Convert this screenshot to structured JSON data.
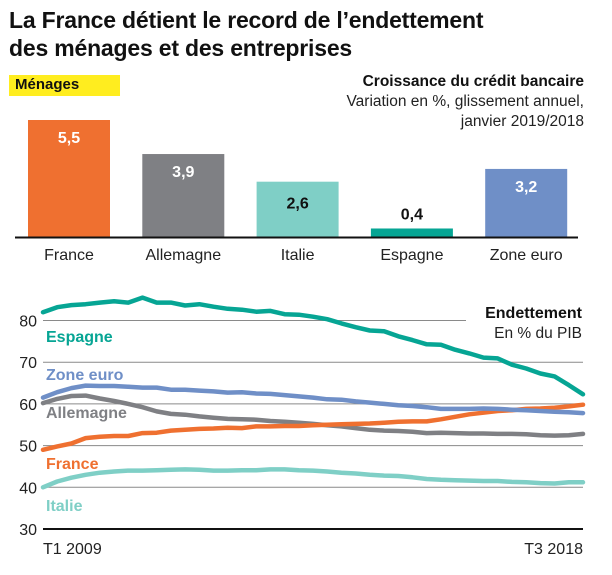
{
  "title": "La France détient le record de l’endettement des ménages et des entreprises",
  "title_lines": [
    "La France détient le record de l’endettement",
    "des ménages et des entreprises"
  ],
  "section_tag": "Ménages",
  "colors": {
    "france": "#ef7030",
    "allemagne": "#7f8084",
    "italie": "#7fcfc6",
    "espagne": "#06a594",
    "zone_euro": "#6f8fc7",
    "tag_yellow": "#ffed1f",
    "grid": "#888888",
    "axis": "#111111"
  },
  "chart_data": [
    {
      "type": "bar",
      "title": "Croissance du crédit bancaire",
      "subtitle_lines": [
        "Variation en %, glissement annuel,",
        "janvier 2019/2018"
      ],
      "categories": [
        "France",
        "Allemagne",
        "Italie",
        "Espagne",
        "Zone euro"
      ],
      "values": [
        5.5,
        3.9,
        2.6,
        0.4,
        3.2
      ],
      "value_labels": [
        "5,5",
        "3,9",
        "2,6",
        "0,4",
        "3,2"
      ],
      "label_colors": [
        "#ffffff",
        "#ffffff",
        "#111111",
        "#111111",
        "#ffffff"
      ],
      "bar_colors": [
        "#ef7030",
        "#7f8084",
        "#7fcfc6",
        "#06a594",
        "#6f8fc7"
      ],
      "xlabel": "",
      "ylabel": "",
      "ylim": [
        0,
        6
      ],
      "grid": false,
      "legend": "none"
    },
    {
      "type": "line",
      "title": "Endettement",
      "subtitle": "En % du PIB",
      "x_start_label": "T1 2009",
      "x_end_label": "T3 2018",
      "x_count": 39,
      "yticks": [
        30,
        40,
        50,
        60,
        70,
        80
      ],
      "ytick_labels": [
        "30",
        "40",
        "50",
        "60",
        "70",
        "80"
      ],
      "ylim": [
        30,
        90
      ],
      "grid": true,
      "legend": "inline-left",
      "series": [
        {
          "name": "Espagne",
          "color": "#06a594",
          "values": [
            82.0,
            83.2,
            83.7,
            83.9,
            84.3,
            84.6,
            84.3,
            85.5,
            84.3,
            84.3,
            83.6,
            83.9,
            83.3,
            82.8,
            82.6,
            82.1,
            82.3,
            81.5,
            81.4,
            80.9,
            80.3,
            79.3,
            78.4,
            77.6,
            77.4,
            76.2,
            75.3,
            74.3,
            74.2,
            73.0,
            72.1,
            71.1,
            70.9,
            69.4,
            68.5,
            67.3,
            66.6,
            64.5,
            62.3
          ]
        },
        {
          "name": "Zone euro",
          "color": "#6f8fc7",
          "values": [
            61.5,
            62.8,
            63.8,
            64.4,
            64.3,
            64.3,
            64.1,
            63.9,
            63.9,
            63.4,
            63.4,
            63.2,
            63.0,
            62.7,
            62.8,
            62.5,
            62.4,
            62.1,
            61.8,
            61.5,
            61.1,
            61.0,
            60.6,
            60.3,
            60.0,
            59.7,
            59.5,
            59.2,
            58.8,
            58.8,
            58.8,
            58.9,
            58.8,
            58.6,
            58.5,
            58.3,
            58.1,
            58.0,
            57.8
          ]
        },
        {
          "name": "Allemagne",
          "color": "#7f8084",
          "values": [
            60.2,
            61.2,
            61.9,
            62.0,
            61.3,
            60.7,
            60.0,
            59.2,
            58.2,
            57.6,
            57.4,
            57.0,
            56.7,
            56.4,
            56.3,
            56.2,
            55.9,
            55.7,
            55.5,
            55.2,
            54.9,
            54.6,
            54.2,
            53.8,
            53.6,
            53.5,
            53.3,
            53.0,
            53.1,
            53.0,
            52.9,
            52.9,
            52.8,
            52.8,
            52.7,
            52.5,
            52.4,
            52.5,
            52.8
          ]
        },
        {
          "name": "France",
          "color": "#ef7030",
          "values": [
            49.0,
            49.8,
            50.5,
            51.8,
            52.1,
            52.3,
            52.3,
            53.0,
            53.1,
            53.6,
            53.8,
            54.0,
            54.1,
            54.3,
            54.2,
            54.6,
            54.6,
            54.7,
            54.7,
            54.9,
            55.0,
            55.1,
            55.2,
            55.3,
            55.5,
            55.7,
            55.8,
            55.8,
            56.3,
            56.9,
            57.5,
            57.9,
            58.3,
            58.5,
            58.8,
            58.9,
            59.1,
            59.4,
            59.8
          ]
        },
        {
          "name": "Italie",
          "color": "#7fcfc6",
          "values": [
            40.0,
            41.4,
            42.3,
            43.0,
            43.5,
            43.8,
            44.0,
            44.0,
            44.1,
            44.2,
            44.3,
            44.2,
            44.0,
            44.0,
            44.1,
            44.1,
            44.3,
            44.3,
            44.1,
            44.0,
            43.8,
            43.5,
            43.3,
            43.0,
            42.8,
            42.7,
            42.4,
            42.0,
            41.8,
            41.7,
            41.6,
            41.5,
            41.5,
            41.3,
            41.2,
            41.0,
            40.9,
            41.2,
            41.2
          ]
        }
      ]
    }
  ]
}
